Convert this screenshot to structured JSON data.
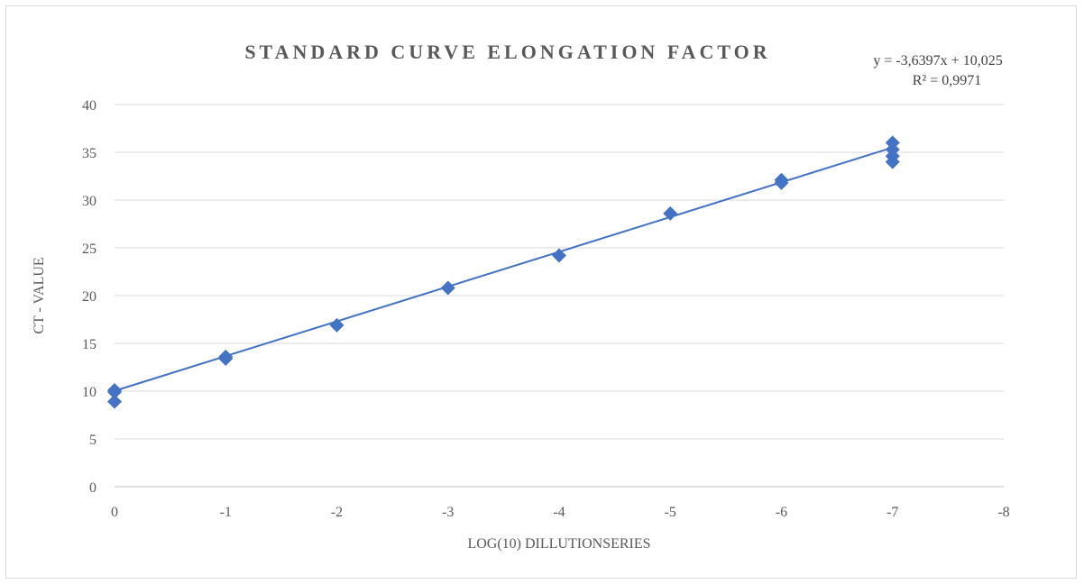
{
  "chart_data": {
    "type": "scatter",
    "title": "STANDARD CURVE ELONGATION FACTOR",
    "xlabel": "LOG(10) DILLUTIONSERIES",
    "ylabel": "CT - VALUE",
    "xlim": [
      0,
      -8
    ],
    "ylim": [
      0,
      40
    ],
    "x_ticks": [
      "0",
      "-1",
      "-2",
      "-3",
      "-4",
      "-5",
      "-6",
      "-7",
      "-8"
    ],
    "y_ticks": [
      "0",
      "5",
      "10",
      "15",
      "20",
      "25",
      "30",
      "35",
      "40"
    ],
    "grid": true,
    "series": [
      {
        "color": "#4472C4",
        "points": [
          {
            "x": 0,
            "y": 10.1
          },
          {
            "x": 0,
            "y": 9.9
          },
          {
            "x": 0,
            "y": 8.9
          },
          {
            "x": -1,
            "y": 13.6
          },
          {
            "x": -1,
            "y": 13.4
          },
          {
            "x": -2,
            "y": 16.9
          },
          {
            "x": -3,
            "y": 20.8
          },
          {
            "x": -4,
            "y": 24.2
          },
          {
            "x": -5,
            "y": 28.6
          },
          {
            "x": -6,
            "y": 32.1
          },
          {
            "x": -6,
            "y": 31.8
          },
          {
            "x": -7,
            "y": 36.0
          },
          {
            "x": -7,
            "y": 35.3
          },
          {
            "x": -7,
            "y": 34.6
          },
          {
            "x": -7,
            "y": 34.0
          }
        ]
      }
    ],
    "trendline": {
      "slope": -3.6397,
      "intercept": 10.025,
      "x_range": [
        0,
        -7
      ],
      "equation_label": "y = -3,6397x + 10,025",
      "r2_label": "R² = 0,9971",
      "color": "#4472C4"
    }
  }
}
